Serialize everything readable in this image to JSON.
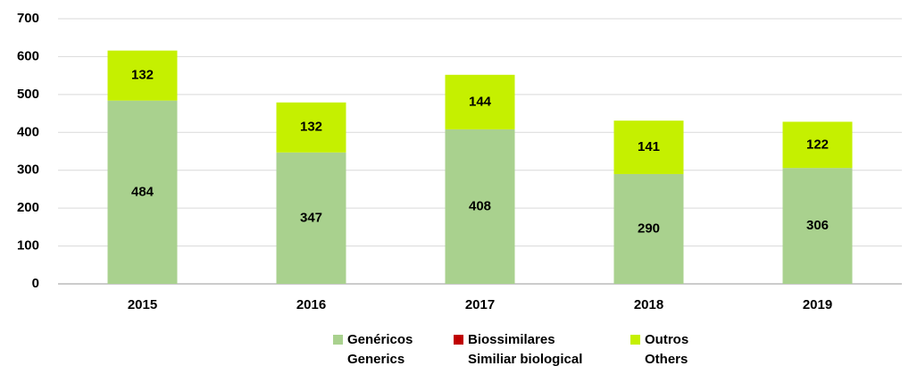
{
  "chart_data": {
    "type": "stacked_bar",
    "categories": [
      "2015",
      "2016",
      "2017",
      "2018",
      "2019"
    ],
    "series": [
      {
        "name": [
          "Genéricos",
          "Generics"
        ],
        "color": "#a9d18e",
        "values": [
          484,
          347,
          408,
          290,
          306
        ]
      },
      {
        "name": [
          "Biossimilares",
          "Similiar biological"
        ],
        "color": "#c00000",
        "values": [
          0,
          0,
          0,
          0,
          0
        ]
      },
      {
        "name": [
          "Outros",
          "Others"
        ],
        "color": "#c5f000",
        "values": [
          132,
          132,
          144,
          141,
          122
        ]
      }
    ],
    "ylim": [
      0,
      700
    ],
    "yticks": [
      0,
      100,
      200,
      300,
      400,
      500,
      600,
      700
    ],
    "grid": true,
    "legend": "bottom"
  }
}
